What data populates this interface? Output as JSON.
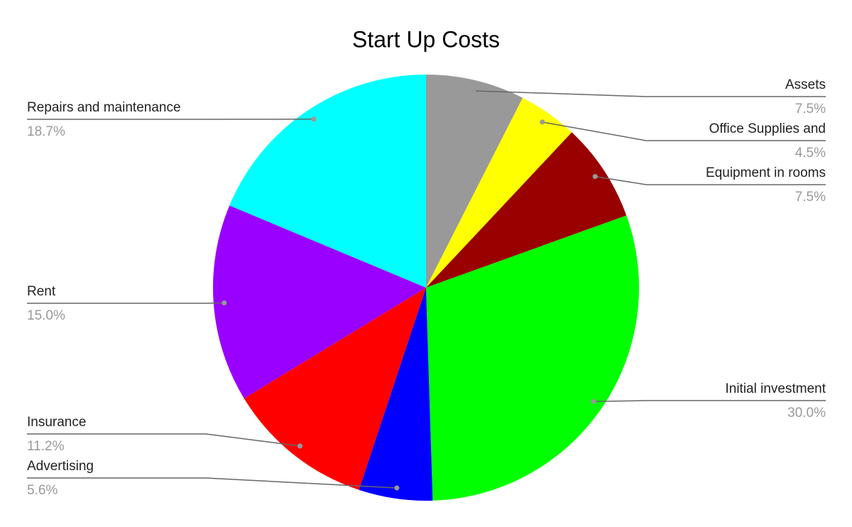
{
  "chart_data": {
    "type": "pie",
    "title": "Start Up Costs",
    "categories": [
      "Assets",
      "Office Supplies and",
      "Equipment in rooms",
      "Initial investment",
      "Advertising",
      "Insurance",
      "Rent",
      "Repairs and maintenance"
    ],
    "values": [
      7.5,
      4.5,
      7.5,
      30.0,
      5.6,
      11.2,
      15.0,
      18.7
    ],
    "value_labels": [
      "7.5%",
      "4.5%",
      "7.5%",
      "30.0%",
      "5.6%",
      "11.2%",
      "15.0%",
      "18.7%"
    ],
    "colors": [
      "#999999",
      "#ffff00",
      "#990000",
      "#00ff00",
      "#0000ff",
      "#ff0000",
      "#9900ff",
      "#00ffff"
    ]
  }
}
